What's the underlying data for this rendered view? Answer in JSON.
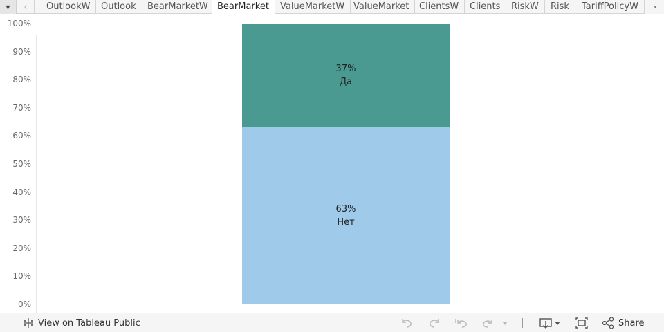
{
  "tabs": {
    "items": [
      {
        "label": "OutlookW",
        "active": false
      },
      {
        "label": "Outlook",
        "active": false
      },
      {
        "label": "BearMarketW",
        "active": false
      },
      {
        "label": "BearMarket",
        "active": true
      },
      {
        "label": "ValueMarketW",
        "active": false
      },
      {
        "label": "ValueMarket",
        "active": false
      },
      {
        "label": "ClientsW",
        "active": false
      },
      {
        "label": "Clients",
        "active": false
      },
      {
        "label": "RiskW",
        "active": false
      },
      {
        "label": "Risk",
        "active": false
      },
      {
        "label": "TariffPolicyW",
        "active": false
      }
    ]
  },
  "chart_data": {
    "type": "bar",
    "stacked": true,
    "categories": [
      ""
    ],
    "series": [
      {
        "name": "Нет",
        "values": [
          63
        ],
        "label": "63%",
        "color": "#a0cae9"
      },
      {
        "name": "Да",
        "values": [
          37
        ],
        "label": "37%",
        "color": "#4a9a91"
      }
    ],
    "ylim": [
      0,
      100
    ],
    "yticks": [
      "0%",
      "10%",
      "20%",
      "30%",
      "40%",
      "50%",
      "60%",
      "70%",
      "80%",
      "90%",
      "100%"
    ],
    "grid": false,
    "legend": "none"
  },
  "toolbar": {
    "view_label": "View on Tableau Public",
    "share_label": "Share"
  },
  "icons": {
    "tab_dropdown": "chevron-down-icon",
    "tab_prev": "chevron-left-icon",
    "tab_next": "chevron-right-icon",
    "tableau": "tableau-logo-icon",
    "undo": "undo-icon",
    "redo": "redo-icon",
    "revert": "revert-icon",
    "refresh": "refresh-icon",
    "download": "download-icon",
    "fullscreen": "fullscreen-icon",
    "share": "share-icon"
  },
  "colors": {
    "bar_yes": "#4a9a91",
    "bar_no": "#a0cae9",
    "tab_bg": "#f5f5f5",
    "toolbar_bg": "#f5f5f5"
  }
}
